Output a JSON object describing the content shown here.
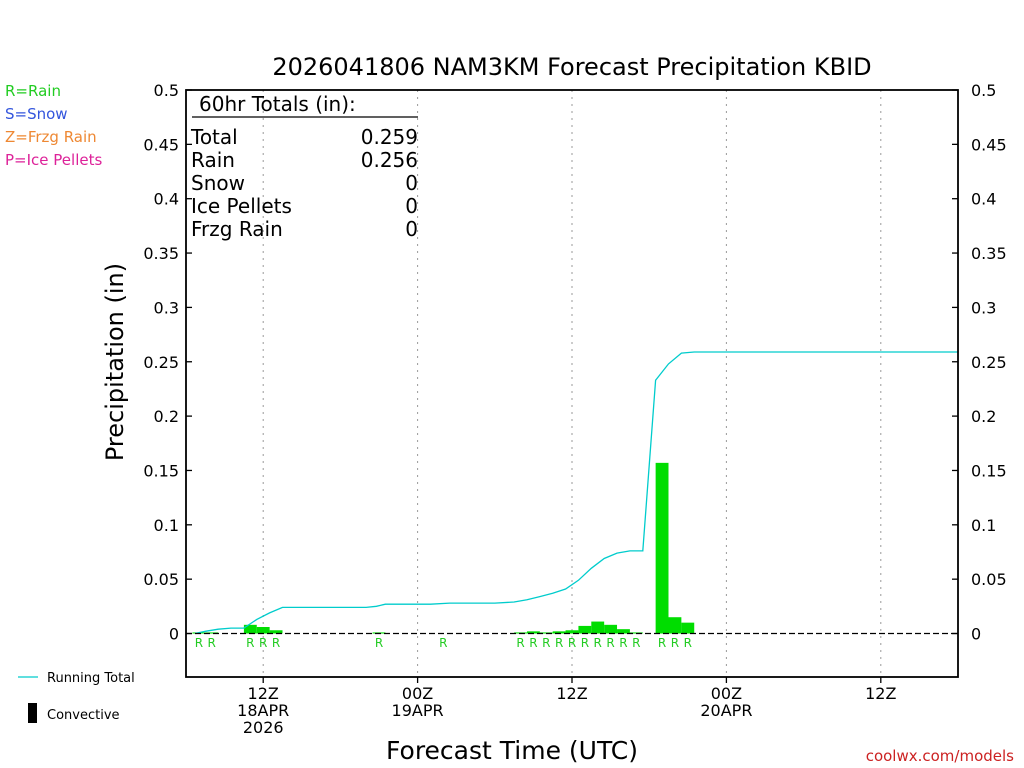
{
  "chart_data": {
    "type": "bar",
    "title": "2026041806 NAM3KM Forecast Precipitation KBID",
    "xlabel": "Forecast Time (UTC)",
    "ylabel": "Precipitation (in)",
    "ylim": [
      -0.04,
      0.5
    ],
    "y_ticks": [
      "0",
      "0.05",
      "0.1",
      "0.15",
      "0.2",
      "0.25",
      "0.3",
      "0.35",
      "0.4",
      "0.45",
      "0.5"
    ],
    "y_tick_values": [
      0,
      0.05,
      0.1,
      0.15,
      0.2,
      0.25,
      0.3,
      0.35,
      0.4,
      0.45,
      0.5
    ],
    "x_range_hours": [
      0,
      60
    ],
    "x_ticks": [
      {
        "hour": 6,
        "labels": [
          "12Z",
          "18APR",
          "2026"
        ]
      },
      {
        "hour": 18,
        "labels": [
          "00Z",
          "19APR"
        ]
      },
      {
        "hour": 30,
        "labels": [
          "12Z"
        ]
      },
      {
        "hour": 42,
        "labels": [
          "00Z",
          "20APR"
        ]
      },
      {
        "hour": 54,
        "labels": [
          "12Z"
        ]
      }
    ],
    "grid": "vertical-dotted",
    "totals_box": {
      "header": "60hr Totals (in):",
      "rows": [
        {
          "label": "Total",
          "value": "0.259"
        },
        {
          "label": "Rain",
          "value": "0.256"
        },
        {
          "label": "Snow",
          "value": "0"
        },
        {
          "label": "Ice Pellets",
          "value": "0"
        },
        {
          "label": "Frzg Rain",
          "value": "0"
        }
      ]
    },
    "type_legend": [
      {
        "text": "R=Rain",
        "color": "#22cc22"
      },
      {
        "text": "S=Snow",
        "color": "#3355dd"
      },
      {
        "text": "Z=Frzg Rain",
        "color": "#ee8833"
      },
      {
        "text": "P=Ice Pellets",
        "color": "#dd2299"
      }
    ],
    "series_legend": [
      {
        "name": "Running Total",
        "kind": "line",
        "color": "#00cccc"
      },
      {
        "name": "Convective",
        "kind": "bar",
        "color": "#000000"
      }
    ],
    "bar_color": "#00dd00",
    "line_color": "#00cccc",
    "marker_color": "#22cc22",
    "bars": [
      {
        "hour": 1,
        "value": 0.001
      },
      {
        "hour": 2,
        "value": 0.001
      },
      {
        "hour": 5,
        "value": 0.008
      },
      {
        "hour": 6,
        "value": 0.006
      },
      {
        "hour": 7,
        "value": 0.003
      },
      {
        "hour": 15,
        "value": 0.001
      },
      {
        "hour": 26,
        "value": 0.001
      },
      {
        "hour": 27,
        "value": 0.002
      },
      {
        "hour": 28,
        "value": 0.001
      },
      {
        "hour": 29,
        "value": 0.002
      },
      {
        "hour": 30,
        "value": 0.003
      },
      {
        "hour": 31,
        "value": 0.007
      },
      {
        "hour": 32,
        "value": 0.011
      },
      {
        "hour": 33,
        "value": 0.008
      },
      {
        "hour": 34,
        "value": 0.004
      },
      {
        "hour": 35,
        "value": 0.001
      },
      {
        "hour": 37,
        "value": 0.157
      },
      {
        "hour": 38,
        "value": 0.015
      },
      {
        "hour": 39,
        "value": 0.01
      }
    ],
    "type_markers": [
      {
        "hour": 1,
        "text": "R"
      },
      {
        "hour": 2,
        "text": "R"
      },
      {
        "hour": 5,
        "text": "R"
      },
      {
        "hour": 6,
        "text": "R"
      },
      {
        "hour": 7,
        "text": "R"
      },
      {
        "hour": 15,
        "text": "R"
      },
      {
        "hour": 20,
        "text": "R"
      },
      {
        "hour": 26,
        "text": "R"
      },
      {
        "hour": 27,
        "text": "R"
      },
      {
        "hour": 28,
        "text": "R"
      },
      {
        "hour": 29,
        "text": "R"
      },
      {
        "hour": 30,
        "text": "R"
      },
      {
        "hour": 31,
        "text": "R"
      },
      {
        "hour": 32,
        "text": "R"
      },
      {
        "hour": 33,
        "text": "R"
      },
      {
        "hour": 34,
        "text": "R"
      },
      {
        "hour": 35,
        "text": "R"
      },
      {
        "hour": 37,
        "text": "R"
      },
      {
        "hour": 38,
        "text": "R"
      },
      {
        "hour": 39,
        "text": "R"
      }
    ],
    "running_total": {
      "x": [
        0.7,
        1.5,
        2.5,
        3.5,
        4.5,
        5.5,
        6.5,
        7.5,
        10,
        14,
        14.8,
        15.5,
        19,
        20.5,
        24,
        25.5,
        26.5,
        27.5,
        28.5,
        29.5,
        30.5,
        31.5,
        32.5,
        33.5,
        34.5,
        35.5,
        36.5,
        37.5,
        38.5,
        39.5,
        40.5,
        60
      ],
      "y": [
        0.0,
        0.002,
        0.004,
        0.005,
        0.005,
        0.013,
        0.019,
        0.024,
        0.024,
        0.024,
        0.025,
        0.027,
        0.027,
        0.028,
        0.028,
        0.029,
        0.031,
        0.034,
        0.037,
        0.041,
        0.049,
        0.06,
        0.069,
        0.074,
        0.076,
        0.076,
        0.233,
        0.248,
        0.258,
        0.259,
        0.259,
        0.259
      ]
    },
    "footer_credit": "coolwx.com/models"
  }
}
